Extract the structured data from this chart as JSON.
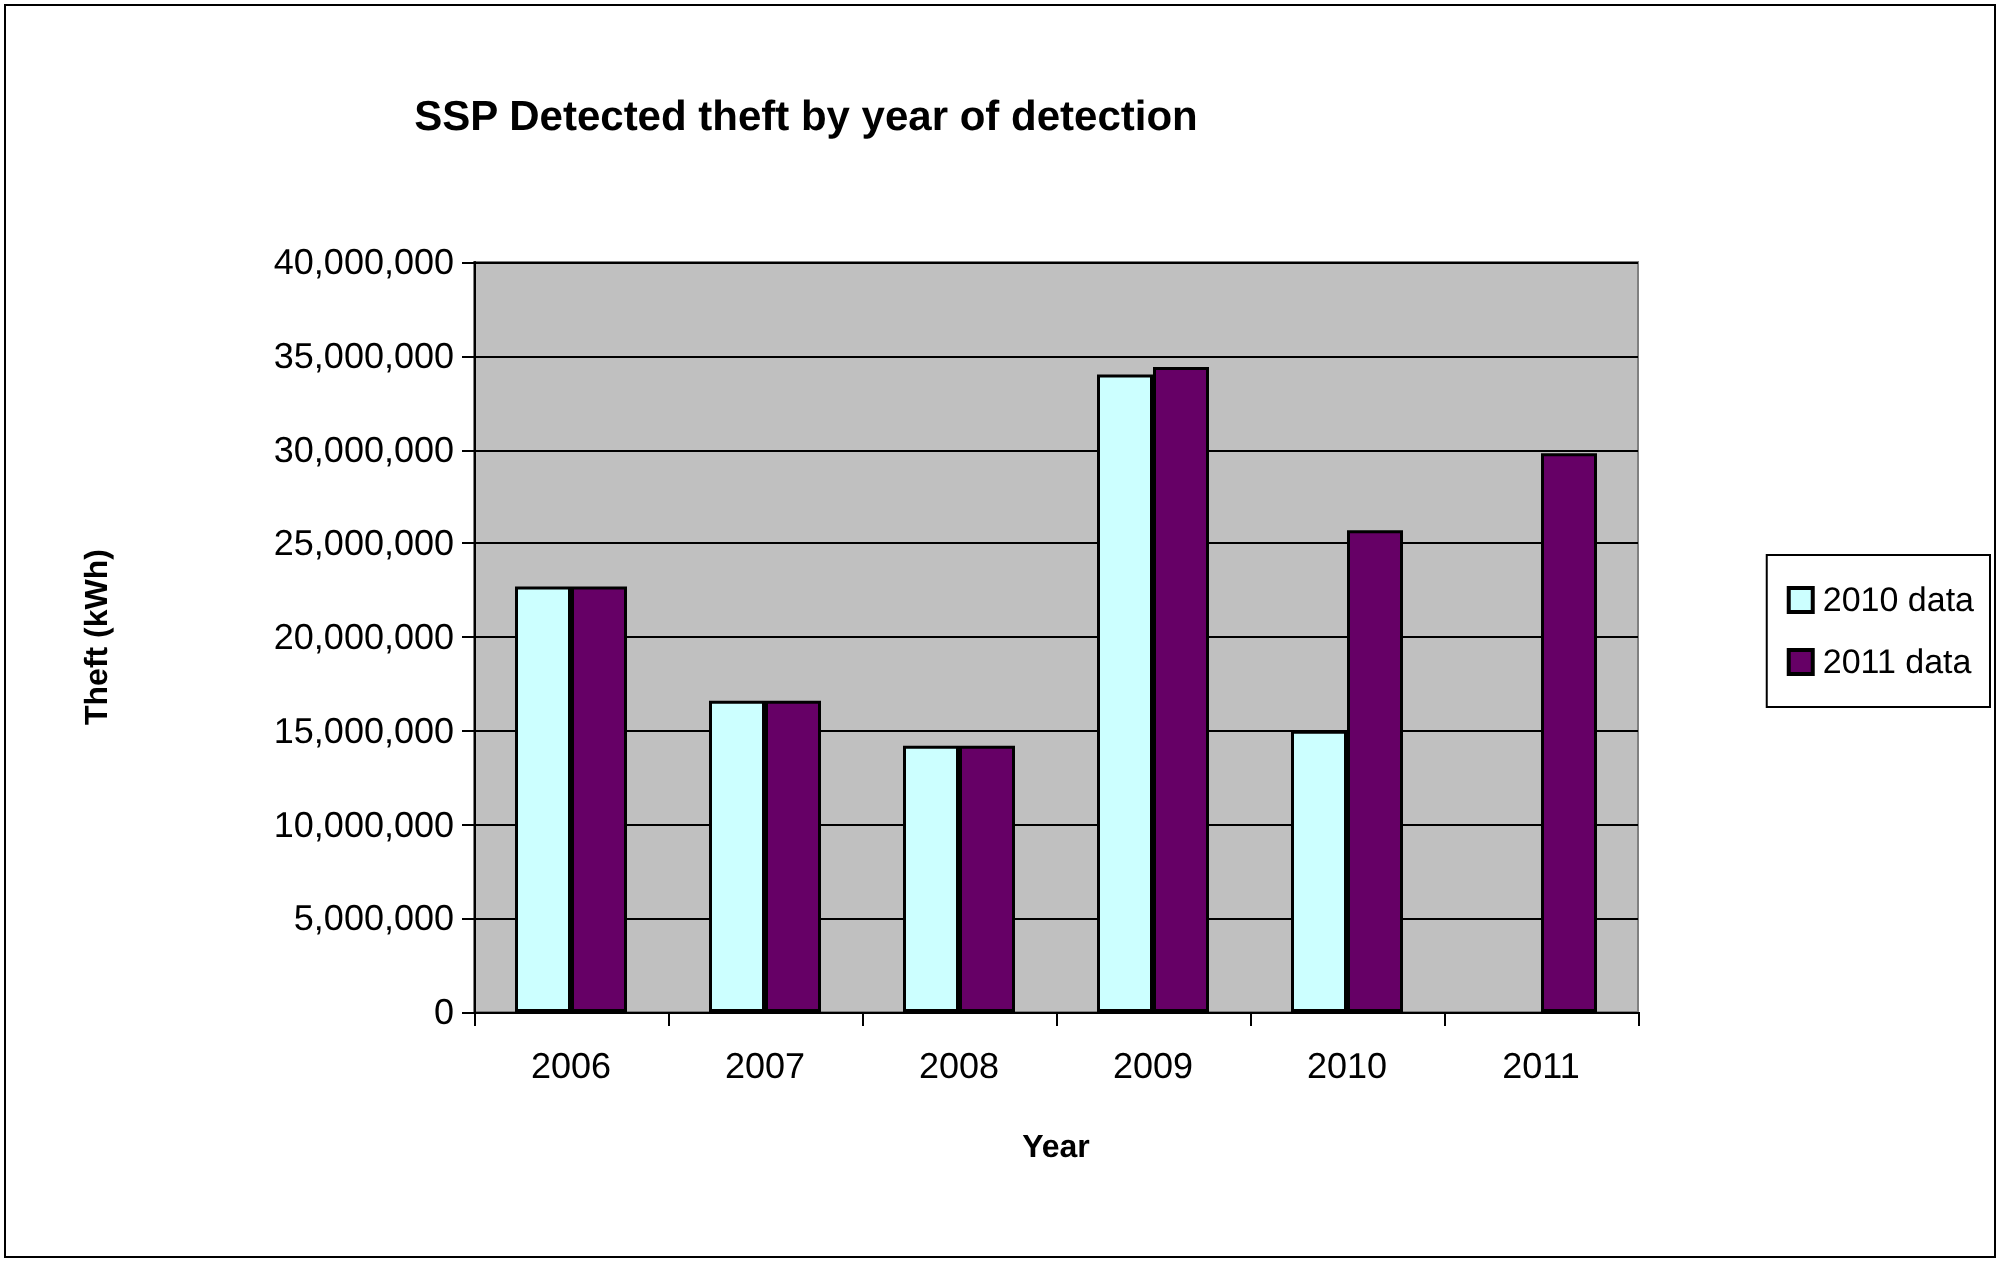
{
  "chart_data": {
    "type": "bar",
    "title": "SSP Detected theft by year of detection",
    "xlabel": "Year",
    "ylabel": "Theft (kWh)",
    "categories": [
      "2006",
      "2007",
      "2008",
      "2009",
      "2010",
      "2011"
    ],
    "series": [
      {
        "name": "2010 data",
        "color": "#ccffff",
        "values": [
          22700000,
          16600000,
          14200000,
          34000000,
          15000000,
          null
        ]
      },
      {
        "name": "2011 data",
        "color": "#660066",
        "values": [
          22700000,
          16600000,
          14200000,
          34400000,
          25700000,
          29800000
        ]
      }
    ],
    "ylim": [
      0,
      40000000
    ],
    "yticks": [
      {
        "value": 0,
        "label": "0"
      },
      {
        "value": 5000000,
        "label": "5,000,000"
      },
      {
        "value": 10000000,
        "label": "10,000,000"
      },
      {
        "value": 15000000,
        "label": "15,000,000"
      },
      {
        "value": 20000000,
        "label": "20,000,000"
      },
      {
        "value": 25000000,
        "label": "25,000,000"
      },
      {
        "value": 30000000,
        "label": "30,000,000"
      },
      {
        "value": 35000000,
        "label": "35,000,000"
      },
      {
        "value": 40000000,
        "label": "40,000,000"
      }
    ],
    "grid": "y",
    "legend": "right"
  }
}
